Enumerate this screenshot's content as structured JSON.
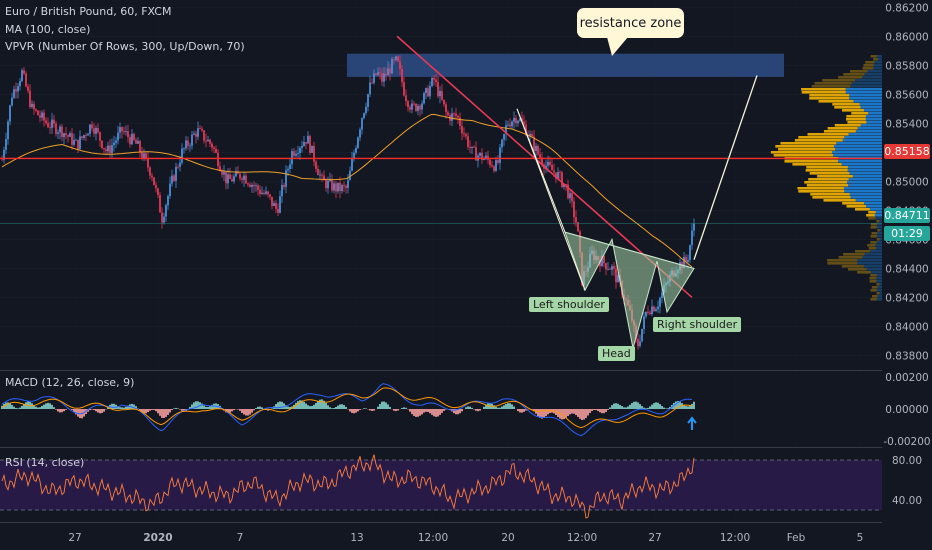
{
  "legend": {
    "title": "Euro / British Pound, 60, FXCM",
    "ma": "MA (100, close)",
    "vpvr": "VPVR (Number Of Rows, 300, Up/Down, 70)"
  },
  "annotations": {
    "resistance_callout": "resistance zone",
    "left_shoulder": "Left shoulder",
    "head": "Head",
    "right_shoulder": "Right shoulder"
  },
  "price_tags": {
    "support": "0.85158",
    "last": "0.84711",
    "countdown": "01:29"
  },
  "colors": {
    "background": "#131722",
    "grid": "#2a2e39",
    "axis_text": "#b2b5be",
    "candle_up": "#4a90d9",
    "candle_down": "#e53955",
    "ma_line": "#f0a02a",
    "trendline": "#e53955",
    "support_line": "#ff2a2a",
    "resistance_zone": "#2e4c85",
    "pattern_fill": "#a5d6a7",
    "macd_line": "#2962ff",
    "signal_line": "#ff9800",
    "rsi_line": "#ff7f3f",
    "rsi_band": "#2a1b4a",
    "vp_up": "#1e88e5",
    "vp_down": "#f5b400"
  },
  "chart_data": [
    {
      "type": "candlestick",
      "title": "Euro / British Pound, 60, FXCM",
      "xlabel": "",
      "ylabel": "",
      "x_tick_labels": [
        "27",
        "2020",
        "7",
        "13",
        "12:00",
        "20",
        "12:00",
        "27",
        "12:00",
        "Feb",
        "5"
      ],
      "y_tick_labels": [
        "0.86200",
        "0.86000",
        "0.85800",
        "0.85600",
        "0.85400",
        "0.85200",
        "0.85000",
        "0.84800",
        "0.84600",
        "0.84400",
        "0.84200",
        "0.84000",
        "0.83800"
      ],
      "ylim": [
        0.837,
        0.8625
      ],
      "close_path": {
        "x_index": [
          0,
          10,
          20,
          30,
          45,
          60,
          75,
          90,
          105,
          120,
          135,
          150,
          160,
          170,
          180,
          195,
          210,
          225,
          240,
          255,
          265,
          275,
          290,
          305,
          320,
          335,
          345,
          352,
          360,
          368,
          375,
          380,
          390,
          395,
          403,
          410,
          420,
          432,
          445,
          455,
          470,
          485,
          495,
          505,
          515,
          525,
          535,
          545,
          555,
          565,
          575,
          580,
          590,
          600,
          610,
          620,
          630,
          635,
          645,
          655,
          665,
          675,
          685,
          692
        ],
        "close": [
          0.8515,
          0.856,
          0.8575,
          0.855,
          0.854,
          0.8535,
          0.8525,
          0.854,
          0.852,
          0.8535,
          0.8525,
          0.8505,
          0.8475,
          0.85,
          0.852,
          0.8535,
          0.8525,
          0.85,
          0.8505,
          0.8495,
          0.849,
          0.848,
          0.852,
          0.853,
          0.85,
          0.8495,
          0.8495,
          0.852,
          0.8545,
          0.8565,
          0.8575,
          0.857,
          0.858,
          0.8583,
          0.856,
          0.855,
          0.8555,
          0.857,
          0.8545,
          0.8545,
          0.852,
          0.8515,
          0.851,
          0.854,
          0.8545,
          0.8535,
          0.852,
          0.851,
          0.8505,
          0.8495,
          0.847,
          0.8432,
          0.845,
          0.8445,
          0.844,
          0.8425,
          0.8405,
          0.8385,
          0.8412,
          0.8415,
          0.843,
          0.8442,
          0.8445,
          0.8471
        ]
      },
      "series": [
        {
          "name": "MA (100, close)",
          "x_index": [
            0,
            60,
            120,
            180,
            240,
            300,
            345,
            390,
            430,
            470,
            510,
            550,
            590,
            620,
            650,
            680,
            692
          ],
          "values": [
            0.851,
            0.8525,
            0.852,
            0.8515,
            0.8508,
            0.85,
            0.8505,
            0.8525,
            0.8545,
            0.8545,
            0.8535,
            0.852,
            0.85,
            0.848,
            0.846,
            0.8445,
            0.844
          ]
        }
      ],
      "horizontal_lines": [
        {
          "label": "0.85158",
          "value": 0.85158
        }
      ],
      "resistance_zone": {
        "label": "resistance zone",
        "y_range": [
          0.8572,
          0.8588
        ]
      },
      "trendline": [
        {
          "x_index": 395,
          "value": 0.86
        },
        {
          "x_index": 690,
          "value": 0.842
        }
      ],
      "projection": [
        {
          "x_index": 692,
          "value": 0.8446
        },
        {
          "x_index": 755,
          "value": 0.8573
        }
      ],
      "pattern": {
        "name": "inverse head and shoulders",
        "points": [
          {
            "label": "",
            "x_index": 563,
            "value": 0.8465
          },
          {
            "label": "Left shoulder",
            "x_index": 583,
            "value": 0.8425
          },
          {
            "label": "",
            "x_index": 610,
            "value": 0.846
          },
          {
            "label": "Head",
            "x_index": 631,
            "value": 0.8385
          },
          {
            "label": "",
            "x_index": 655,
            "value": 0.8445
          },
          {
            "label": "Right shoulder",
            "x_index": 665,
            "value": 0.841
          },
          {
            "label": "",
            "x_index": 692,
            "value": 0.844
          }
        ]
      }
    },
    {
      "type": "line",
      "title": "MACD (12, 26, close, 9)",
      "y_tick_labels": [
        "0.00200",
        "0.00000",
        "-0.00200"
      ],
      "ylim": [
        -0.0023,
        0.0023
      ],
      "series": [
        {
          "name": "MACD",
          "x_index": [
            0,
            40,
            80,
            120,
            160,
            200,
            240,
            280,
            320,
            360,
            380,
            420,
            460,
            500,
            540,
            580,
            620,
            660,
            692
          ],
          "values": [
            0.0003,
            0.0008,
            -0.0002,
            0.0004,
            -0.0012,
            0.0005,
            -0.0008,
            0.0003,
            0.001,
            0.0006,
            0.0015,
            0.0002,
            0.0001,
            0.0007,
            -0.0004,
            -0.0015,
            -0.0003,
            -0.0001,
            0.0006
          ]
        },
        {
          "name": "Signal",
          "x_index": [
            0,
            40,
            80,
            120,
            160,
            200,
            240,
            280,
            320,
            360,
            380,
            420,
            460,
            500,
            540,
            580,
            620,
            660,
            692
          ],
          "values": [
            0.0001,
            0.0005,
            0.0002,
            0.0001,
            -0.0008,
            0.0001,
            -0.0005,
            0.0,
            0.0006,
            0.0008,
            0.0012,
            0.0006,
            0.0002,
            0.0004,
            0.0,
            -0.001,
            -0.0006,
            -0.0003,
            0.0002
          ]
        }
      ]
    },
    {
      "type": "line",
      "title": "RSI (14, close)",
      "y_tick_labels": [
        "80.00",
        "40.00"
      ],
      "ylim": [
        20,
        90
      ],
      "series": [
        {
          "name": "RSI",
          "x_index": [
            0,
            25,
            50,
            75,
            100,
            125,
            150,
            175,
            200,
            225,
            250,
            275,
            300,
            325,
            350,
            370,
            390,
            410,
            430,
            450,
            470,
            490,
            510,
            530,
            550,
            570,
            585,
            600,
            620,
            640,
            660,
            680,
            692
          ],
          "values": [
            55,
            65,
            48,
            60,
            52,
            45,
            35,
            58,
            50,
            44,
            58,
            40,
            60,
            55,
            72,
            78,
            60,
            62,
            55,
            40,
            48,
            55,
            70,
            60,
            45,
            42,
            28,
            45,
            40,
            55,
            50,
            60,
            78
          ]
        }
      ]
    }
  ]
}
